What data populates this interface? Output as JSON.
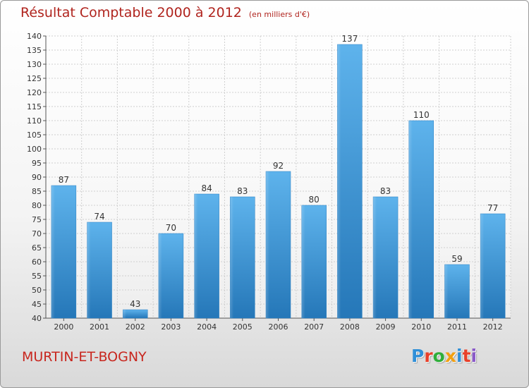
{
  "header": {
    "title": "Résultat Comptable 2000 à 2012",
    "subtitle": "(en milliers d'€)"
  },
  "footer": {
    "city": "MURTIN-ET-BOGNY"
  },
  "logo": {
    "letters": [
      "P",
      "r",
      "o",
      "x",
      "i",
      "t",
      "i"
    ],
    "colors": [
      "#2f8fd8",
      "#e8402a",
      "#2fae3a",
      "#f2a012",
      "#2f8fd8",
      "#e8402a",
      "#8a5ac8"
    ]
  },
  "chart_data": {
    "type": "bar",
    "title": "Résultat Comptable 2000 à 2012",
    "subtitle": "(en milliers d'€)",
    "xlabel": "",
    "ylabel": "",
    "categories": [
      "2000",
      "2001",
      "2002",
      "2003",
      "2004",
      "2005",
      "2006",
      "2007",
      "2008",
      "2009",
      "2010",
      "2011",
      "2012"
    ],
    "values": [
      87,
      74,
      43,
      70,
      84,
      83,
      92,
      80,
      137,
      83,
      110,
      59,
      77
    ],
    "ylim": [
      40,
      140
    ],
    "yticks": [
      40,
      45,
      50,
      55,
      60,
      65,
      70,
      75,
      80,
      85,
      90,
      95,
      100,
      105,
      110,
      115,
      120,
      125,
      130,
      135,
      140
    ],
    "grid": true,
    "bar_color": "#3d9ee0"
  }
}
